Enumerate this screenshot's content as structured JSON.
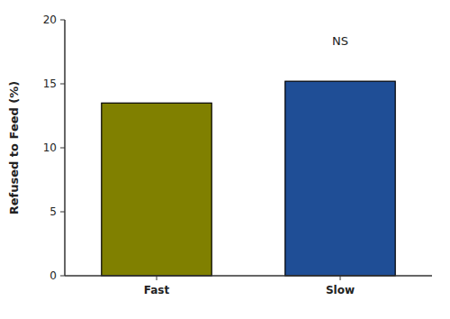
{
  "chart_data": {
    "type": "bar",
    "categories": [
      "Fast",
      "Slow"
    ],
    "values": [
      13.5,
      15.2
    ],
    "colors": [
      "#808000",
      "#1F4E96"
    ],
    "y_label": "Refused to Feed (%)",
    "ylim": [
      0,
      20
    ],
    "yticks": [
      0,
      5,
      10,
      15,
      20
    ],
    "annotation": "NS",
    "grid": false
  }
}
